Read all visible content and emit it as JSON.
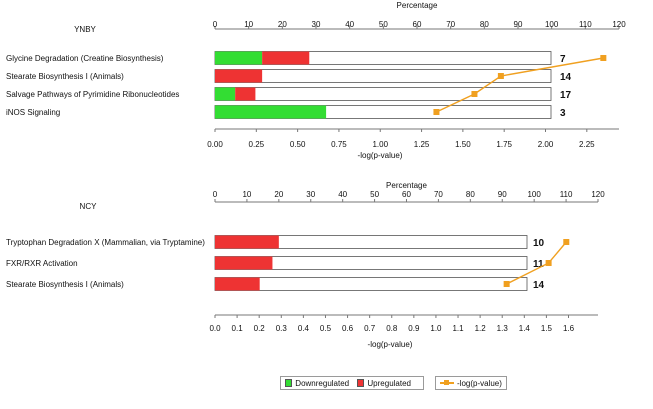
{
  "chart_data": [
    {
      "type": "bar",
      "panel_label": "YNBY",
      "top_axis_label": "Percentage",
      "xlabel": "-log(p-value)",
      "percent_ticks": [
        "0",
        "10",
        "20",
        "30",
        "40",
        "50",
        "60",
        "70",
        "80",
        "90",
        "100",
        "110",
        "120"
      ],
      "percent_lim": [
        0,
        120
      ],
      "logp_ticks": [
        "0.00",
        "0.25",
        "0.50",
        "0.75",
        "1.00",
        "1.25",
        "1.50",
        "1.75",
        "2.00",
        "2.25"
      ],
      "logp_lim": [
        0,
        2.5
      ],
      "categories": [
        "Glycine Degradation (Creatine Biosynthesis)",
        "Stearate Biosynthesis I (Animals)",
        "Salvage Pathways of Pyrimidine Ribonucleotides",
        "iNOS Signaling"
      ],
      "counts": [
        "7",
        "14",
        "17",
        "3"
      ],
      "series": [
        {
          "name": "Downregulated",
          "values": [
            14,
            0,
            6,
            33
          ]
        },
        {
          "name": "Upregulated",
          "values": [
            14,
            14,
            6,
            0
          ]
        },
        {
          "name": "-log(p-value)",
          "values": [
            2.35,
            1.73,
            1.57,
            1.34
          ]
        }
      ]
    },
    {
      "type": "bar",
      "panel_label": "NCY",
      "top_axis_label": "Percentage",
      "xlabel": "-log(p-value)",
      "percent_ticks": [
        "0",
        "10",
        "20",
        "30",
        "40",
        "50",
        "60",
        "70",
        "80",
        "90",
        "100",
        "110",
        "120"
      ],
      "percent_lim": [
        0,
        120
      ],
      "logp_ticks": [
        "0.0",
        "0.1",
        "0.2",
        "0.3",
        "0.4",
        "0.5",
        "0.6",
        "0.7",
        "0.8",
        "0.9",
        "1.0",
        "1.1",
        "1.2",
        "1.3",
        "1.4",
        "1.5",
        "1.6"
      ],
      "logp_lim": [
        0,
        1.7
      ],
      "categories": [
        "Tryptophan Degradation X (Mammalian, via Tryptamine)",
        "FXR/RXR Activation",
        "Stearate Biosynthesis I (Animals)"
      ],
      "counts": [
        "10",
        "11",
        "14"
      ],
      "series": [
        {
          "name": "Downregulated",
          "values": [
            0,
            0,
            0
          ]
        },
        {
          "name": "Upregulated",
          "values": [
            20,
            18,
            14
          ]
        },
        {
          "name": "-log(p-value)",
          "values": [
            1.59,
            1.51,
            1.32
          ]
        }
      ]
    }
  ],
  "legend": {
    "downregulated": "Downregulated",
    "upregulated": "Upregulated",
    "logp": "-log(p-value)"
  },
  "colors": {
    "downregulated": "#33dd33",
    "upregulated": "#ee3333",
    "logp": "#f0a020",
    "bar_frame": "#555555"
  }
}
